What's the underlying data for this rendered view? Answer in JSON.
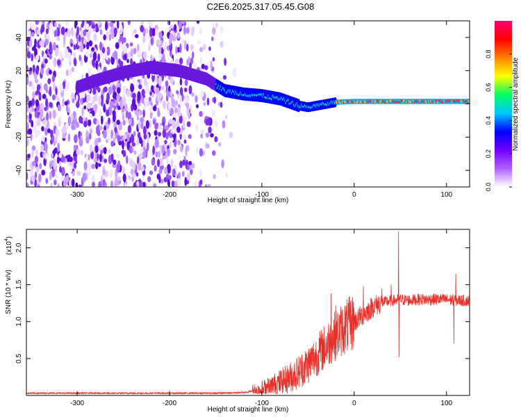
{
  "title": "C2E6.2025.317.05.45.G08",
  "chart_data": [
    {
      "type": "heatmap",
      "xlabel": "Height of straight line (km)",
      "ylabel": "Frequency (Hz)",
      "xlim": [
        -355,
        125
      ],
      "ylim": [
        -50,
        50
      ],
      "xticks": [
        -300,
        -200,
        -100,
        0,
        100
      ],
      "yticks": [
        -40,
        -20,
        0,
        20,
        40
      ],
      "colorbar": {
        "label": "Normalized spectral amplitude",
        "range": [
          0,
          1
        ],
        "ticks": [
          0.0,
          0.2,
          0.4,
          0.6,
          0.8
        ],
        "colors": [
          "#ffffff",
          "#b060ff",
          "#7000ff",
          "#0000ff",
          "#00c8ff",
          "#00ff60",
          "#ffff00",
          "#ff8000",
          "#ff0000",
          "#ff0070"
        ]
      },
      "features": {
        "noise_region_x": [
          -355,
          -120
        ],
        "signal_trace": [
          {
            "x": -300,
            "y": 10
          },
          {
            "x": -280,
            "y": 14
          },
          {
            "x": -250,
            "y": 19
          },
          {
            "x": -220,
            "y": 22
          },
          {
            "x": -190,
            "y": 20
          },
          {
            "x": -160,
            "y": 15
          },
          {
            "x": -140,
            "y": 8
          },
          {
            "x": -120,
            "y": 6
          },
          {
            "x": -100,
            "y": 5
          },
          {
            "x": -80,
            "y": 3
          },
          {
            "x": -60,
            "y": -1
          },
          {
            "x": -50,
            "y": -2
          },
          {
            "x": -40,
            "y": -1
          },
          {
            "x": -20,
            "y": 1
          },
          {
            "x": 0,
            "y": 1.5
          },
          {
            "x": 50,
            "y": 1.5
          },
          {
            "x": 100,
            "y": 1.5
          },
          {
            "x": 125,
            "y": 1.5
          }
        ]
      }
    },
    {
      "type": "line",
      "xlabel": "Height of straight line (km)",
      "ylabel": "SNR (10 * v/v)",
      "multiplier_label": "(x10",
      "multiplier_exp": "4",
      "xlim": [
        -355,
        125
      ],
      "ylim": [
        0,
        2.25
      ],
      "xticks": [
        -300,
        -200,
        -100,
        0,
        100
      ],
      "yticks": [
        0.5,
        1.0,
        1.5,
        2.0
      ],
      "series": [
        {
          "color": "#e8302a",
          "x": [
            -355,
            -300,
            -250,
            -200,
            -150,
            -120,
            -100,
            -90,
            -80,
            -70,
            -60,
            -50,
            -40,
            -30,
            -20,
            -10,
            0,
            10,
            20,
            30,
            40,
            50,
            60,
            70,
            80,
            90,
            100,
            110,
            125
          ],
          "y": [
            0.03,
            0.03,
            0.03,
            0.03,
            0.03,
            0.04,
            0.08,
            0.12,
            0.18,
            0.24,
            0.32,
            0.42,
            0.55,
            0.68,
            0.82,
            0.92,
            1.0,
            1.1,
            1.2,
            1.26,
            1.28,
            1.3,
            1.29,
            1.3,
            1.3,
            1.3,
            1.3,
            1.29,
            1.28
          ]
        }
      ],
      "spikes": [
        {
          "x": -25,
          "y": 1.38
        },
        {
          "x": -20,
          "y": 1.22
        },
        {
          "x": -15,
          "y": 0.98
        },
        {
          "x": 10,
          "y": 1.48
        },
        {
          "x": 30,
          "y": 1.45
        },
        {
          "x": 40,
          "y": 1.5
        },
        {
          "x": 48,
          "y": 2.22
        },
        {
          "x": 48.5,
          "y": 0.52
        },
        {
          "x": 108,
          "y": 0.7
        },
        {
          "x": 110,
          "y": 1.65
        }
      ]
    }
  ]
}
